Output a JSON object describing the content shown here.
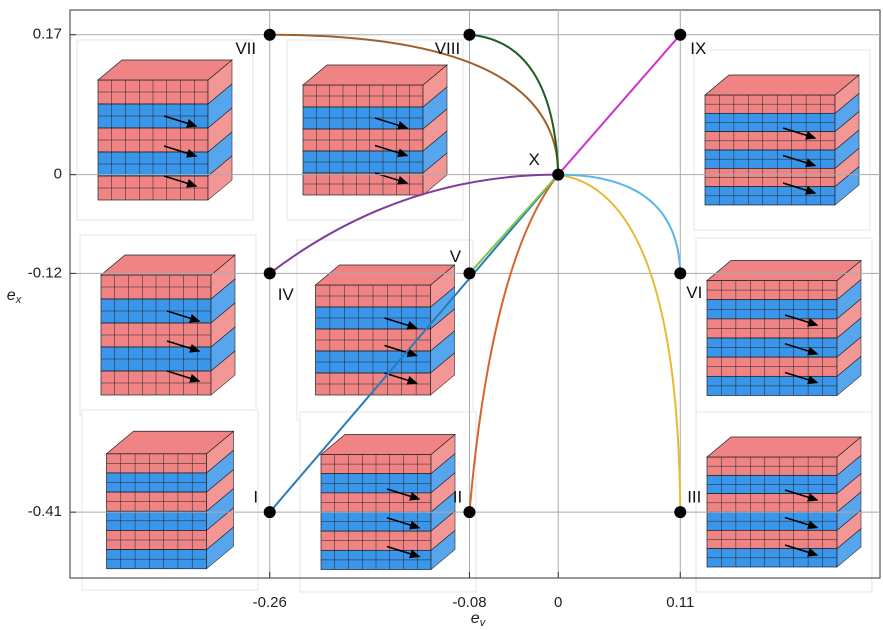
{
  "chart_data": {
    "type": "scatter",
    "xlabel": {
      "text": "e",
      "subscript": "v"
    },
    "ylabel": {
      "text": "e",
      "subscript": "x"
    },
    "xlim": [
      -0.44,
      0.29
    ],
    "ylim": [
      -0.49,
      0.2
    ],
    "xticks": [
      -0.26,
      -0.08,
      0,
      0.11
    ],
    "yticks": [
      -0.41,
      -0.12,
      0,
      0.17
    ],
    "grid": true,
    "points": {
      "labels": [
        "I",
        "II",
        "III",
        "IV",
        "V",
        "VI",
        "VII",
        "VIII",
        "IX",
        "X"
      ],
      "x": [
        -0.26,
        -0.08,
        0.11,
        -0.26,
        -0.08,
        0.11,
        -0.26,
        -0.08,
        0.11,
        0
      ],
      "y": [
        -0.41,
        -0.41,
        -0.41,
        -0.12,
        -0.12,
        -0.12,
        0.17,
        0.17,
        0.17,
        0
      ],
      "color": "#000000"
    },
    "series": [
      {
        "color": "#2b7bba",
        "x": [
          -0.26,
          0
        ],
        "y": [
          -0.41,
          0
        ]
      },
      {
        "color": "#d8642c",
        "x": [
          -0.08,
          0
        ],
        "y": [
          -0.41,
          0
        ]
      },
      {
        "color": "#e9b935",
        "x": [
          0,
          0.11
        ],
        "y": [
          0,
          -0.41
        ]
      },
      {
        "color": "#7e3f98",
        "x": [
          -0.26,
          0
        ],
        "y": [
          -0.12,
          0
        ]
      },
      {
        "color": "#78c846",
        "x": [
          -0.08,
          0
        ],
        "y": [
          -0.12,
          0
        ]
      },
      {
        "color": "#5bb9e3",
        "x": [
          0,
          0.11
        ],
        "y": [
          0,
          -0.12
        ]
      },
      {
        "color": "#a0602b",
        "x": [
          -0.26,
          0
        ],
        "y": [
          0.17,
          0
        ]
      },
      {
        "color": "#1c5e1c",
        "x": [
          -0.08,
          0
        ],
        "y": [
          0.17,
          0
        ]
      },
      {
        "color": "#cc33cc",
        "x": [
          0,
          0.11
        ],
        "y": [
          0,
          0.17
        ]
      }
    ]
  }
}
